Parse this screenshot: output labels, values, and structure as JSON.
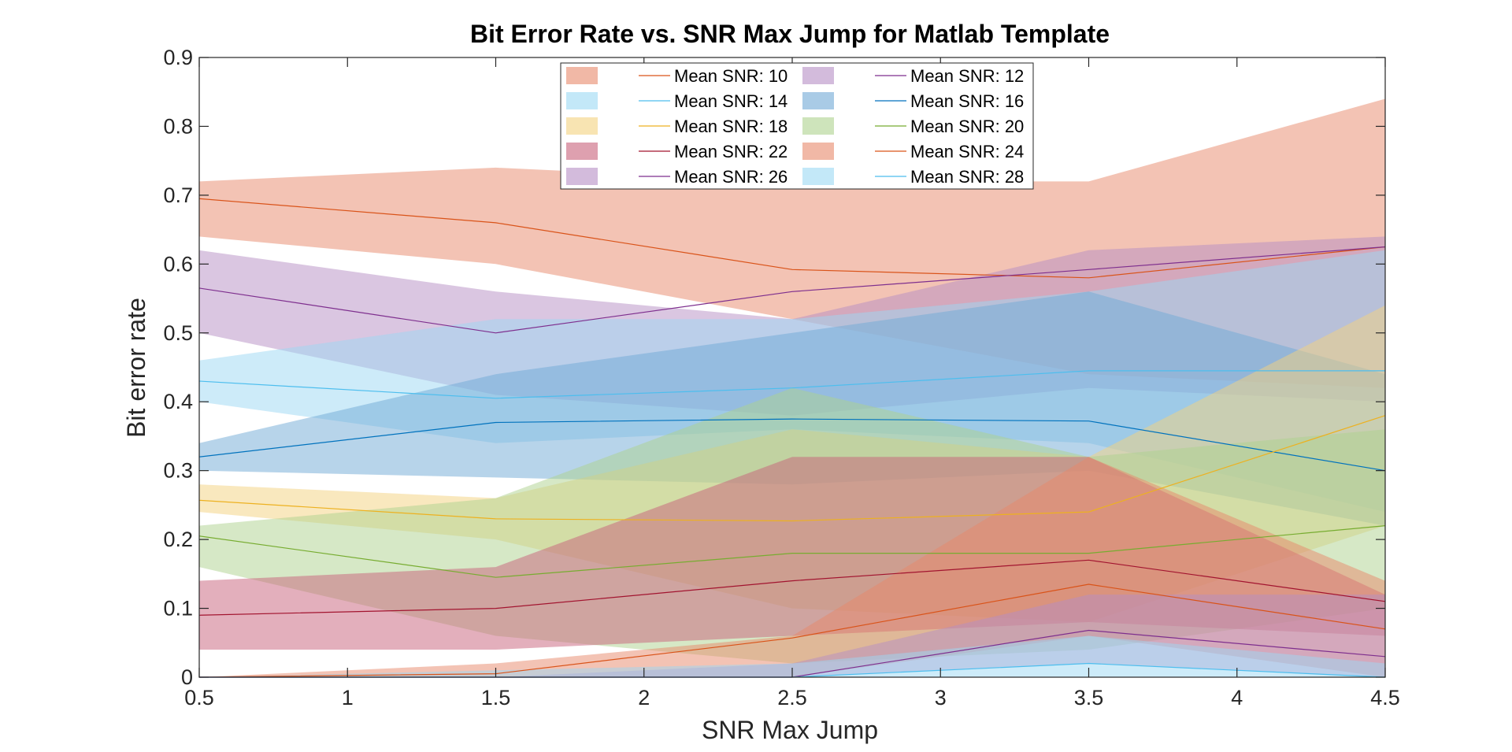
{
  "chart_data": {
    "type": "area",
    "title": "Bit Error Rate vs. SNR Max Jump for Matlab Template",
    "xlabel": "SNR Max Jump",
    "ylabel": "Bit error rate",
    "xlim": [
      0.5,
      4.5
    ],
    "ylim": [
      0,
      0.9
    ],
    "xticks": [
      0.5,
      1,
      1.5,
      2,
      2.5,
      3,
      3.5,
      4,
      4.5
    ],
    "xtick_labels": [
      "0.5",
      "1",
      "1.5",
      "2",
      "2.5",
      "3",
      "3.5",
      "4",
      "4.5"
    ],
    "yticks": [
      0,
      0.1,
      0.2,
      0.3,
      0.4,
      0.5,
      0.6,
      0.7,
      0.8,
      0.9
    ],
    "ytick_labels": [
      "0",
      "0.1",
      "0.2",
      "0.3",
      "0.4",
      "0.5",
      "0.6",
      "0.7",
      "0.8",
      "0.9"
    ],
    "grid": false,
    "legend_position": "top-center",
    "x": [
      0.5,
      1.5,
      2.5,
      3.5,
      4.5
    ],
    "series": [
      {
        "name": "Mean SNR: 10",
        "color": "#D95319",
        "fill": "#E8886A",
        "mean": [
          0.695,
          0.66,
          0.592,
          0.58,
          0.625
        ],
        "lower": [
          0.64,
          0.6,
          0.52,
          0.44,
          0.42
        ],
        "upper": [
          0.72,
          0.74,
          0.72,
          0.72,
          0.84
        ]
      },
      {
        "name": "Mean SNR: 12",
        "color": "#7E2F8E",
        "fill": "#B58DC4",
        "mean": [
          0.565,
          0.5,
          0.56,
          0.592,
          0.625
        ],
        "lower": [
          0.5,
          0.41,
          0.38,
          0.42,
          0.4
        ],
        "upper": [
          0.62,
          0.56,
          0.52,
          0.62,
          0.64
        ]
      },
      {
        "name": "Mean SNR: 14",
        "color": "#4DBEEE",
        "fill": "#9BD8F4",
        "mean": [
          0.43,
          0.405,
          0.42,
          0.445,
          0.445
        ],
        "lower": [
          0.4,
          0.34,
          0.36,
          0.34,
          0.24
        ],
        "upper": [
          0.46,
          0.52,
          0.52,
          0.56,
          0.62
        ]
      },
      {
        "name": "Mean SNR: 16",
        "color": "#0072BD",
        "fill": "#6FA9D6",
        "mean": [
          0.32,
          0.37,
          0.375,
          0.372,
          0.3
        ],
        "lower": [
          0.3,
          0.29,
          0.28,
          0.3,
          0.22
        ],
        "upper": [
          0.34,
          0.44,
          0.5,
          0.56,
          0.44
        ]
      },
      {
        "name": "Mean SNR: 18",
        "color": "#EDB120",
        "fill": "#F3D27E",
        "mean": [
          0.257,
          0.23,
          0.227,
          0.24,
          0.38
        ],
        "lower": [
          0.24,
          0.2,
          0.1,
          0.08,
          0.22
        ],
        "upper": [
          0.28,
          0.26,
          0.36,
          0.32,
          0.54
        ]
      },
      {
        "name": "Mean SNR: 20",
        "color": "#77AC30",
        "fill": "#AED28E",
        "mean": [
          0.205,
          0.145,
          0.18,
          0.18,
          0.22
        ],
        "lower": [
          0.16,
          0.06,
          0.02,
          0.04,
          0.1
        ],
        "upper": [
          0.22,
          0.26,
          0.42,
          0.32,
          0.36
        ]
      },
      {
        "name": "Mean SNR: 22",
        "color": "#A2142F",
        "fill": "#C8607A",
        "mean": [
          0.09,
          0.1,
          0.14,
          0.17,
          0.11
        ],
        "lower": [
          0.04,
          0.04,
          0.06,
          0.08,
          0.06
        ],
        "upper": [
          0.14,
          0.16,
          0.32,
          0.32,
          0.12
        ]
      },
      {
        "name": "Mean SNR: 24",
        "color": "#D95319",
        "fill": "#E8886A",
        "mean": [
          0.0,
          0.005,
          0.057,
          0.135,
          0.07
        ],
        "lower": [
          0.0,
          0.0,
          0.0,
          0.06,
          0.0
        ],
        "upper": [
          0.0,
          0.02,
          0.06,
          0.32,
          0.14
        ]
      },
      {
        "name": "Mean SNR: 26",
        "color": "#7E2F8E",
        "fill": "#B58DC4",
        "mean": [
          0.0,
          0.0,
          0.0,
          0.068,
          0.03
        ],
        "lower": [
          0.0,
          0.0,
          0.0,
          0.02,
          0.0
        ],
        "upper": [
          0.0,
          0.0,
          0.02,
          0.12,
          0.12
        ]
      },
      {
        "name": "Mean SNR: 28",
        "color": "#4DBEEE",
        "fill": "#9BD8F4",
        "mean": [
          0.0,
          0.0,
          0.0,
          0.02,
          0.0
        ],
        "lower": [
          0.0,
          0.0,
          0.0,
          0.0,
          0.0
        ],
        "upper": [
          0.0,
          0.01,
          0.02,
          0.06,
          0.02
        ]
      }
    ]
  }
}
